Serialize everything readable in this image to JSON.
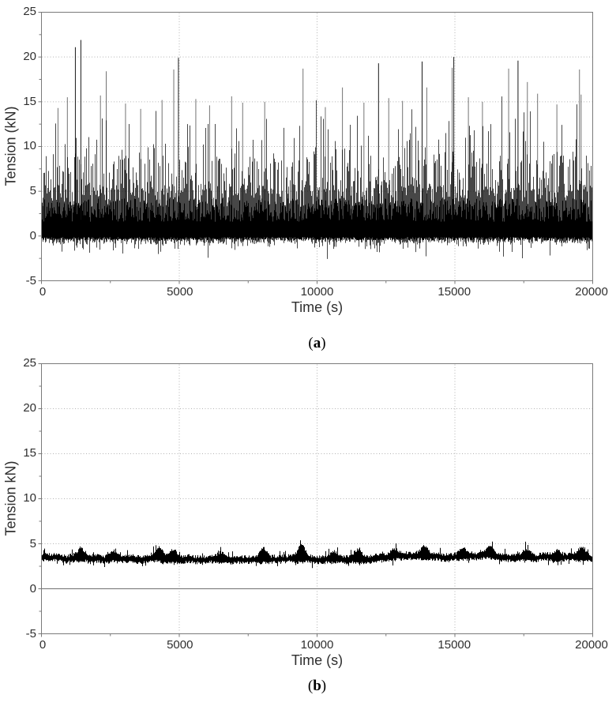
{
  "figure": {
    "background": "#ffffff",
    "description": "Two stacked time-series plots of mooring line tension versus time"
  },
  "chart_data": [
    {
      "type": "line",
      "caption_prefix": "(",
      "caption_letter": "a",
      "caption_suffix": ")",
      "xlabel": "Time (s)",
      "ylabel": "Tension (kN)",
      "xlim": [
        0,
        20000
      ],
      "ylim": [
        -5,
        25
      ],
      "xticks": [
        0,
        5000,
        10000,
        15000,
        20000
      ],
      "yticks": [
        25,
        20,
        15,
        10,
        5,
        0,
        -5
      ],
      "xtick_labels": [
        "0",
        "5000",
        "10000",
        "15000",
        "20000"
      ],
      "ytick_labels": [
        "25",
        "20",
        "15",
        "10",
        "5",
        "0",
        "-5"
      ],
      "x_minor_step": 2500,
      "y_minor_step": 2.5,
      "axis_color": "#7a7a7a",
      "line_color": "#000000",
      "grid": {
        "style": "dotted",
        "color": "#b3b3b3",
        "at_x": [
          5000,
          10000,
          15000
        ],
        "at_y": [
          20,
          15,
          10,
          5
        ],
        "zero_line": {
          "style": "solid",
          "color": "#707070"
        }
      },
      "summary": "Highly spiky stochastic tension signal: dense band roughly -1 to 6 kN, frequent spikes 7-14 kN, occasional extreme spikes up to ~22 kN",
      "series": {
        "name": "tension",
        "kind": "spiky-envelope",
        "seed": 1337,
        "dense_band_top_range": [
          3.2,
          5.8
        ],
        "mid_spike_prob": 0.5,
        "mid_spike_range": [
          4.5,
          9.0
        ],
        "high_spike_prob": 0.16,
        "high_spike_range": [
          8.0,
          13.2
        ],
        "rare_spike_prob": 0.018,
        "rare_spike_range": [
          12.0,
          15.6
        ],
        "neg_base_range": [
          -0.1,
          -0.8
        ],
        "deep_dip_prob": 0.25,
        "deep_dip_extra": 0.9,
        "rare_dip_prob": 0.03,
        "rare_dip_extra": 1.6,
        "core_band": [
          -0.5,
          4.2
        ],
        "major_spikes": [
          [
            600,
            14.3
          ],
          [
            940,
            15.5
          ],
          [
            1230,
            21.1
          ],
          [
            1430,
            21.9
          ],
          [
            2140,
            15.7
          ],
          [
            2350,
            18.4
          ],
          [
            3050,
            14.8
          ],
          [
            3600,
            14.2
          ],
          [
            4375,
            15.2
          ],
          [
            4800,
            18.6
          ],
          [
            4970,
            19.9
          ],
          [
            5600,
            15.3
          ],
          [
            6100,
            14.6
          ],
          [
            6900,
            15.6
          ],
          [
            7300,
            14.9
          ],
          [
            8100,
            15.0
          ],
          [
            9490,
            18.7
          ],
          [
            10300,
            14.4
          ],
          [
            10920,
            16.6
          ],
          [
            11700,
            14.9
          ],
          [
            12230,
            19.3
          ],
          [
            12600,
            15.4
          ],
          [
            13100,
            15.1
          ],
          [
            13810,
            19.5
          ],
          [
            13980,
            16.6
          ],
          [
            14900,
            18.8
          ],
          [
            14960,
            20.0
          ],
          [
            15490,
            15.5
          ],
          [
            16000,
            15.0
          ],
          [
            16950,
            18.7
          ],
          [
            17290,
            19.6
          ],
          [
            17630,
            17.2
          ],
          [
            18000,
            15.9
          ],
          [
            18700,
            14.7
          ],
          [
            19520,
            18.6
          ],
          [
            19580,
            15.8
          ]
        ]
      }
    },
    {
      "type": "line",
      "caption_prefix": "(",
      "caption_letter": "b",
      "caption_suffix": ")",
      "xlabel": "Time (s)",
      "ylabel": "Tension kN)",
      "xlim": [
        0,
        20000
      ],
      "ylim": [
        -5,
        25
      ],
      "xticks": [
        0,
        5000,
        10000,
        15000,
        20000
      ],
      "yticks": [
        25,
        20,
        15,
        10,
        5,
        0,
        -5
      ],
      "xtick_labels": [
        "0",
        "5000",
        "10000",
        "15000",
        "20000"
      ],
      "ytick_labels": [
        "25",
        "20",
        "15",
        "10",
        "5",
        "0",
        "-5"
      ],
      "x_minor_step": 2500,
      "y_minor_step": 2.5,
      "axis_color": "#7a7a7a",
      "line_color": "#000000",
      "grid": {
        "style": "dotted",
        "color": "#b3b3b3",
        "at_x": [
          5000,
          10000,
          15000
        ],
        "at_y": [
          20,
          15,
          10,
          5
        ],
        "zero_line": {
          "style": "solid",
          "color": "#707070"
        }
      },
      "summary": "Quiet tension signal: narrow noisy band centred near 3.5 kN (roughly 2.8-4.3 kN), with occasional small excursions up to ~5.5 kN",
      "series": {
        "name": "tension",
        "kind": "band-envelope",
        "seed": 2024,
        "mean": 3.45,
        "wander_step": 0.1,
        "wander_min": 3.2,
        "wander_max": 3.75,
        "envelope_low_range": [
          0.18,
          0.48
        ],
        "envelope_high_range": [
          0.18,
          0.52
        ],
        "upper_flick_prob": 0.06,
        "upper_flick_extra": [
          0.25,
          0.75
        ],
        "lower_flick_prob": 0.05,
        "lower_flick_extra": [
          0.2,
          0.6
        ],
        "bump_sigma_s": 120,
        "bumps": [
          [
            1430,
            0.8
          ],
          [
            2600,
            0.5
          ],
          [
            4290,
            0.9
          ],
          [
            4800,
            0.8
          ],
          [
            6500,
            0.5
          ],
          [
            8050,
            1.0
          ],
          [
            9430,
            1.3
          ],
          [
            10600,
            0.6
          ],
          [
            11500,
            0.8
          ],
          [
            12800,
            0.5
          ],
          [
            13900,
            0.8
          ],
          [
            15300,
            0.6
          ],
          [
            16300,
            0.7
          ],
          [
            17600,
            0.6
          ],
          [
            18700,
            0.5
          ],
          [
            19600,
            0.8
          ]
        ]
      }
    }
  ]
}
